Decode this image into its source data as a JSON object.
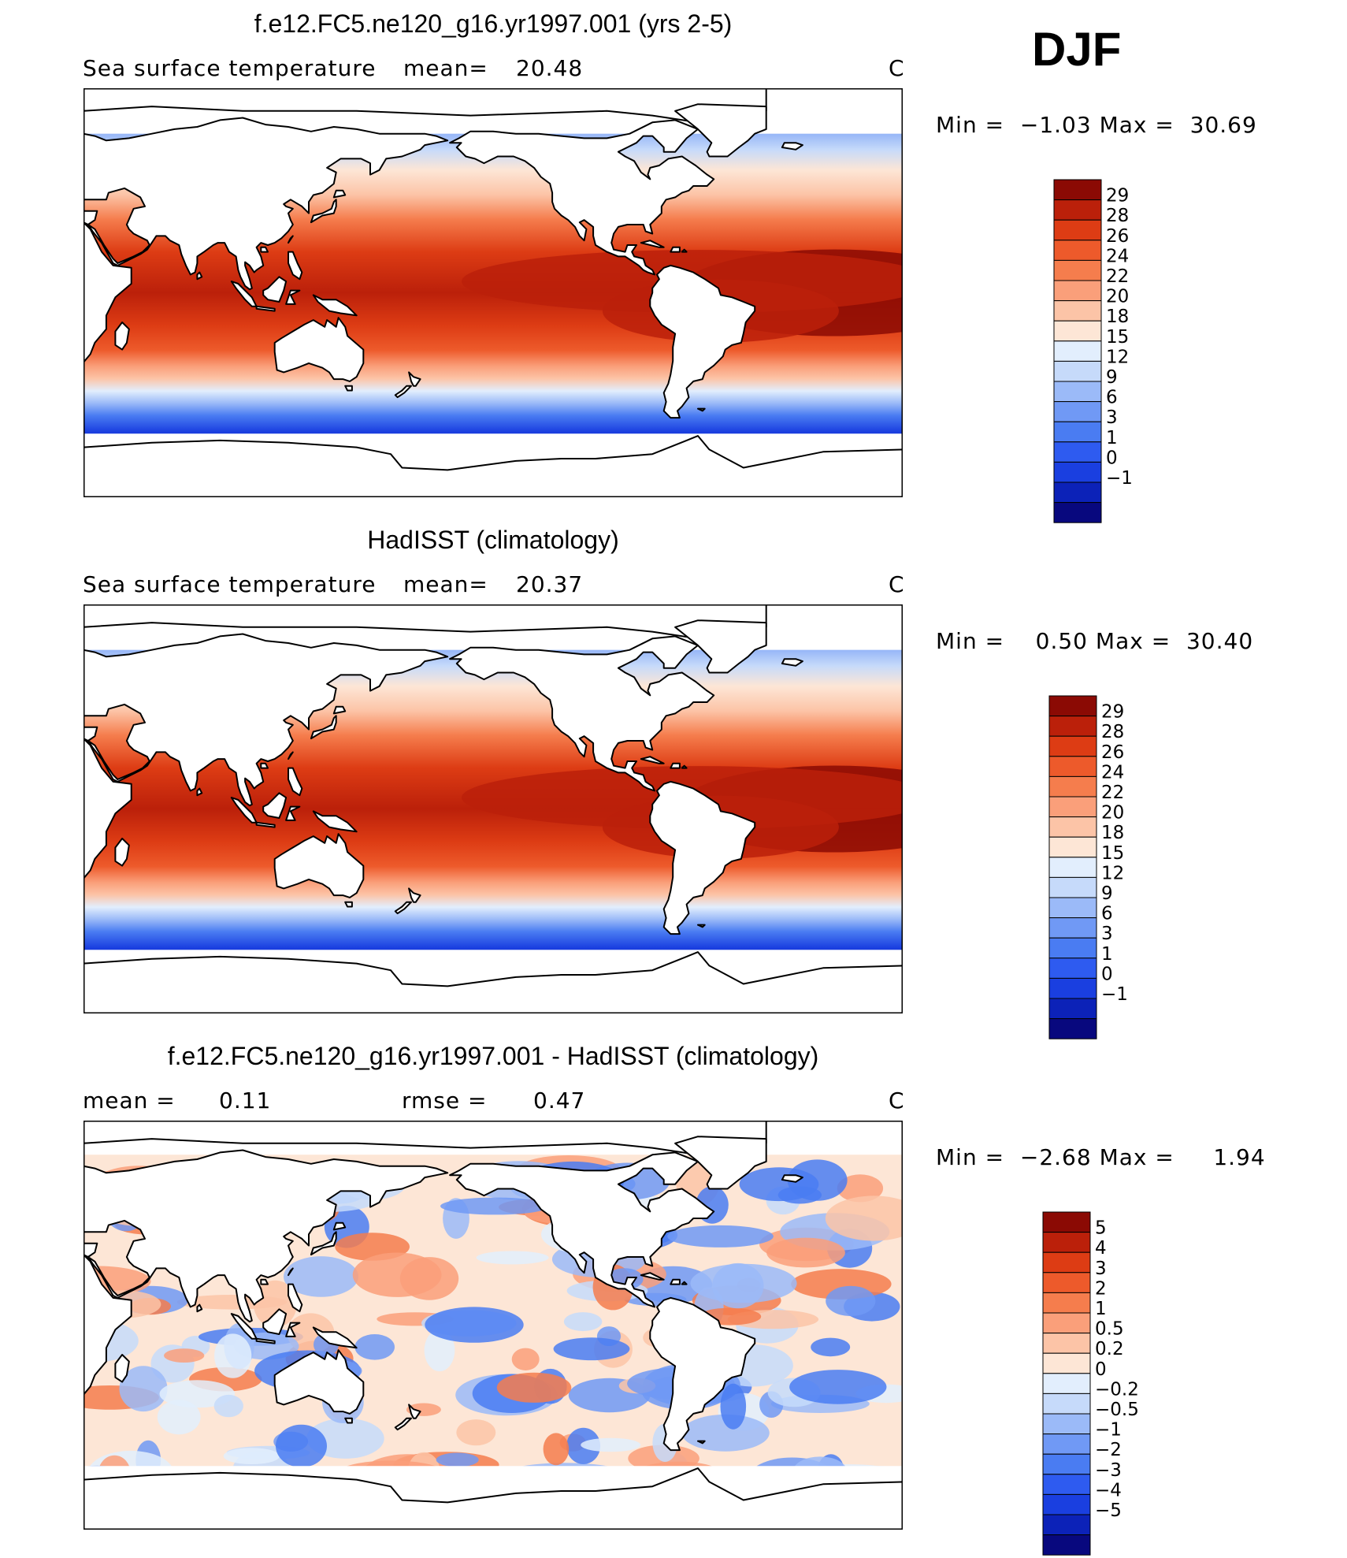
{
  "season": "DJF",
  "colors": {
    "sst": [
      "#08087e",
      "#0c22b8",
      "#1a3fe0",
      "#2e5bf0",
      "#4a7cf2",
      "#7099f5",
      "#9bbaf8",
      "#c6dafa",
      "#e2eefd",
      "#fde6d6",
      "#fcc4a7",
      "#fa9f7a",
      "#f57d4d",
      "#ed5a2b",
      "#dd3c14",
      "#bb200a",
      "#8b0a04"
    ],
    "diff": [
      "#08087e",
      "#0c22b8",
      "#1a3fe0",
      "#2e5bf0",
      "#4a7cf2",
      "#7099f5",
      "#9bbaf8",
      "#c6dafa",
      "#e2eefd",
      "#fde6d6",
      "#fcc4a7",
      "#fa9f7a",
      "#f57d4d",
      "#ed5a2b",
      "#dd3c14",
      "#bb200a",
      "#8b0a04"
    ],
    "land": "#ffffff",
    "coast": "#000000"
  },
  "panels": [
    {
      "title": "f.e12.FC5.ne120_g16.yr1997.001 (yrs 2-5)",
      "variable": "Sea surface temperature",
      "stat1_label": "mean=",
      "stat1_value": "20.48",
      "stat2_label": "",
      "stat2_value": "",
      "units": "C",
      "min_label": "Min =",
      "min_value": "−1.03",
      "max_label": "Max =",
      "max_value": "30.69",
      "levels": [
        "29",
        "28",
        "26",
        "24",
        "22",
        "20",
        "18",
        "15",
        "12",
        "9",
        "6",
        "3",
        "1",
        "0",
        "−1"
      ],
      "kind": "sst"
    },
    {
      "title": "HadISST (climatology)",
      "variable": "Sea surface temperature",
      "stat1_label": "mean=",
      "stat1_value": "20.37",
      "stat2_label": "",
      "stat2_value": "",
      "units": "C",
      "min_label": "Min =",
      "min_value": "0.50",
      "max_label": "Max =",
      "max_value": "30.40",
      "levels": [
        "29",
        "28",
        "26",
        "24",
        "22",
        "20",
        "18",
        "15",
        "12",
        "9",
        "6",
        "3",
        "1",
        "0",
        "−1"
      ],
      "kind": "sst"
    },
    {
      "title": "f.e12.FC5.ne120_g16.yr1997.001 - HadISST (climatology)",
      "variable": "",
      "stat1_label": "mean =",
      "stat1_value": "0.11",
      "stat2_label": "rmse =",
      "stat2_value": "0.47",
      "units": "C",
      "min_label": "Min =",
      "min_value": "−2.68",
      "max_label": "Max =",
      "max_value": "1.94",
      "levels": [
        "5",
        "4",
        "3",
        "2",
        "1",
        "0.5",
        "0.2",
        "0",
        "−0.2",
        "−0.5",
        "−1",
        "−2",
        "−3",
        "−4",
        "−5"
      ],
      "kind": "diff"
    }
  ]
}
